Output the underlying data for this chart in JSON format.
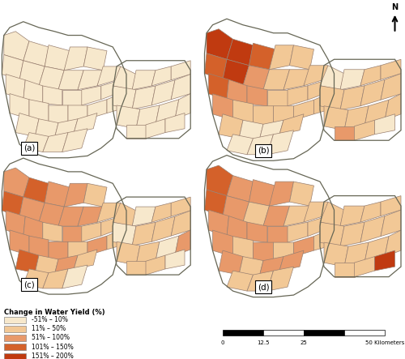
{
  "legend_title": "Change in Water Yield (%)",
  "legend_labels": [
    "-51% – 10%",
    "11% – 50%",
    "51% – 100%",
    "101% – 150%",
    "151% – 200%"
  ],
  "legend_colors": [
    "#f7e8cc",
    "#f2c896",
    "#e8996a",
    "#d4612a",
    "#c03a10"
  ],
  "background_color": "#ffffff",
  "edge_color": "#9a8070",
  "colors": {
    "c0": "#f7e8cc",
    "c1": "#f2c896",
    "c2": "#e8996a",
    "c3": "#d4612a",
    "c4": "#c03a10"
  }
}
